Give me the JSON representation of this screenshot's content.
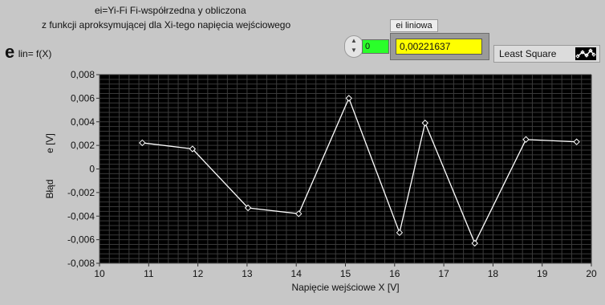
{
  "description": {
    "line1": "ei=Yi-Fi   Fi-współrzedna y obliczona",
    "line2": "z funkcji aproksymującej dla Xi-tego napięcia wejściowego"
  },
  "graph_label": {
    "symbol": "e",
    "text": "lin= f(X)"
  },
  "index_control": {
    "value": "0"
  },
  "ei_liniowa": {
    "label": "ei liniowa",
    "value": "0,00221637"
  },
  "plot_legend": {
    "label": "Least Square",
    "icon": "plot-style-icon"
  },
  "colors": {
    "panel": "#c7c7c7",
    "plot_bg": "#000000",
    "grid": "#3a3a3a",
    "series": "#ffffff",
    "index_value_bg": "#2aff2a",
    "ei_value_bg": "#ffff00"
  },
  "chart_data": {
    "type": "line",
    "xlabel": "Napięcie wejściowe X [V]",
    "ylabel_lines": [
      "e [V]",
      "Błąd"
    ],
    "xlim": [
      10,
      20
    ],
    "ylim": [
      -0.008,
      0.008
    ],
    "xticks": [
      10,
      11,
      12,
      13,
      14,
      15,
      16,
      17,
      18,
      19,
      20
    ],
    "xtick_labels": [
      "10",
      "11",
      "12",
      "13",
      "14",
      "15",
      "16",
      "17",
      "18",
      "19",
      "20"
    ],
    "yticks": [
      0.008,
      0.006,
      0.004,
      0.002,
      0,
      -0.002,
      -0.004,
      -0.006,
      -0.008
    ],
    "ytick_labels": [
      "0,008",
      "0,006",
      "0,004",
      "0,002",
      "0",
      "-0,002",
      "-0,004",
      "-0,006",
      "-0,008"
    ],
    "grid": true,
    "marker": "diamond",
    "series": [
      {
        "x": [
          10.87,
          11.89,
          13.02,
          14.05,
          15.07,
          16.1,
          16.62,
          17.63,
          18.67,
          19.7
        ],
        "y": [
          0.00221637,
          0.0017,
          -0.0033,
          -0.0038,
          0.006,
          -0.0054,
          0.0039,
          -0.0063,
          0.0025,
          0.0023
        ]
      }
    ]
  }
}
